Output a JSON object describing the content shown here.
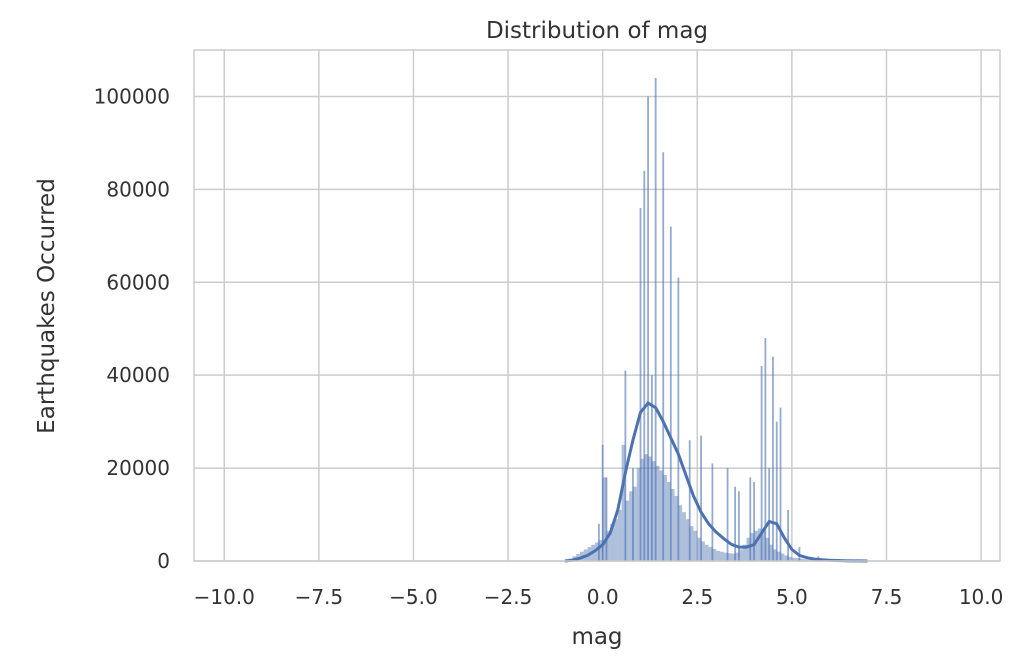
{
  "chart_data": {
    "type": "histogram",
    "title": "Distribution of mag",
    "xlabel": "mag",
    "ylabel": "Earthquakes Occurred",
    "xlim": [
      -10.8,
      10.5
    ],
    "ylim": [
      0,
      110000
    ],
    "xticks": [
      -10.0,
      -7.5,
      -5.0,
      -2.5,
      0.0,
      2.5,
      5.0,
      7.5,
      10.0
    ],
    "xtick_labels": [
      "−10.0",
      "−7.5",
      "−5.0",
      "−2.5",
      "0.0",
      "2.5",
      "5.0",
      "7.5",
      "10.0"
    ],
    "yticks": [
      0,
      20000,
      40000,
      60000,
      80000,
      100000
    ],
    "ytick_labels": [
      "0",
      "20000",
      "40000",
      "60000",
      "80000",
      "100000"
    ],
    "grid": true,
    "bar_color": "#4c72b0",
    "kde_color": "#4c72b0",
    "bins": {
      "edges": [
        -1.0,
        -0.9,
        -0.8,
        -0.7,
        -0.6,
        -0.5,
        -0.4,
        -0.3,
        -0.2,
        -0.1,
        0.0,
        0.1,
        0.2,
        0.3,
        0.4,
        0.5,
        0.6,
        0.7,
        0.8,
        0.9,
        1.0,
        1.1,
        1.2,
        1.3,
        1.4,
        1.5,
        1.6,
        1.7,
        1.8,
        1.9,
        2.0,
        2.1,
        2.2,
        2.3,
        2.4,
        2.5,
        2.6,
        2.7,
        2.8,
        2.9,
        3.0,
        3.1,
        3.2,
        3.3,
        3.4,
        3.5,
        3.6,
        3.7,
        3.8,
        3.9,
        4.0,
        4.1,
        4.2,
        4.3,
        4.4,
        4.5,
        4.6,
        4.7,
        4.8,
        4.9,
        5.0,
        5.1,
        5.2,
        5.3,
        5.4,
        5.5,
        5.6,
        5.7,
        5.8,
        5.9,
        6.0,
        6.1,
        6.2,
        6.3,
        6.4,
        6.5,
        6.6,
        6.7,
        6.8,
        6.9,
        7.0
      ],
      "counts": [
        200,
        500,
        1000,
        1500,
        2000,
        2500,
        3000,
        3500,
        4000,
        4500,
        18000,
        6500,
        8000,
        9000,
        11000,
        25000,
        13000,
        15000,
        16000,
        20000,
        22000,
        23000,
        22500,
        21500,
        20500,
        19500,
        18500,
        17000,
        15500,
        14000,
        12000,
        10500,
        9000,
        7500,
        6500,
        5000,
        4200,
        3500,
        3000,
        2600,
        2200,
        2000,
        1800,
        1700,
        1600,
        1800,
        2500,
        3500,
        5000,
        6000,
        6500,
        7000,
        6500,
        5000,
        3500,
        2500,
        2000,
        1600,
        1200,
        900,
        700,
        600,
        500,
        400,
        300,
        250,
        200,
        150,
        100,
        80,
        60,
        40,
        30,
        20,
        15,
        10,
        8,
        5,
        3,
        1
      ]
    },
    "spikes": {
      "x": [
        -0.1,
        0.0,
        0.1,
        0.6,
        0.8,
        1.0,
        1.1,
        1.2,
        1.3,
        1.4,
        1.6,
        1.8,
        2.0,
        2.3,
        2.6,
        2.9,
        3.3,
        3.5,
        3.6,
        3.9,
        4.0,
        4.2,
        4.3,
        4.4,
        4.5,
        4.6,
        4.7,
        4.9,
        5.2,
        5.7
      ],
      "values": [
        8000,
        25000,
        18000,
        41000,
        20000,
        76000,
        84000,
        100000,
        40000,
        104000,
        88000,
        72000,
        61000,
        26000,
        27000,
        21000,
        20000,
        16000,
        15000,
        18000,
        17000,
        42000,
        48000,
        20000,
        44000,
        30000,
        33000,
        11000,
        3000,
        1000
      ]
    },
    "kde": {
      "x": [
        -1.0,
        -0.8,
        -0.6,
        -0.4,
        -0.2,
        0.0,
        0.2,
        0.4,
        0.6,
        0.8,
        1.0,
        1.2,
        1.4,
        1.6,
        1.8,
        2.0,
        2.2,
        2.4,
        2.6,
        2.8,
        3.0,
        3.2,
        3.4,
        3.6,
        3.8,
        4.0,
        4.2,
        4.4,
        4.6,
        4.8,
        5.0,
        5.2,
        5.4,
        5.6,
        5.8,
        6.0,
        6.2,
        6.4,
        6.6,
        6.8,
        7.0
      ],
      "y": [
        0,
        200,
        600,
        1200,
        2200,
        3500,
        6000,
        11000,
        19000,
        26000,
        32000,
        34000,
        33000,
        30000,
        26500,
        23000,
        18500,
        14000,
        10500,
        8000,
        6200,
        4800,
        3600,
        3000,
        3000,
        3500,
        6000,
        8500,
        8000,
        5000,
        2500,
        1200,
        700,
        400,
        250,
        150,
        100,
        60,
        30,
        15,
        5
      ]
    }
  }
}
